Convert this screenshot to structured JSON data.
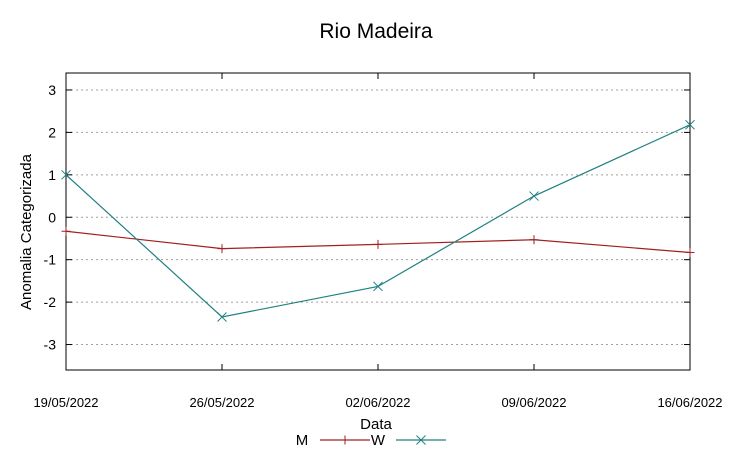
{
  "chart_data": {
    "type": "line",
    "title": "Rio Madeira",
    "xlabel": "Data",
    "ylabel": "Anomalia Categorizada",
    "categories": [
      "19/05/2022",
      "26/05/2022",
      "02/06/2022",
      "09/06/2022",
      "16/06/2022"
    ],
    "x": [
      0,
      7,
      14,
      21,
      28
    ],
    "ylim": [
      -3.6,
      3.4
    ],
    "yticks": [
      -3,
      -2,
      -1,
      0,
      1,
      2,
      3
    ],
    "ytick_labels": [
      "-3",
      "-2",
      "-1",
      "0",
      "1",
      "2",
      "3"
    ],
    "grid": true,
    "legend_position": "bottom-center",
    "series": [
      {
        "name": "M",
        "color": "#a02020",
        "marker": "plus",
        "values": [
          -0.33,
          -0.74,
          -0.64,
          -0.53,
          -0.83
        ]
      },
      {
        "name": "W",
        "color": "#208080",
        "marker": "cross",
        "values": [
          1.0,
          -2.35,
          -1.63,
          0.5,
          2.18
        ]
      }
    ]
  }
}
